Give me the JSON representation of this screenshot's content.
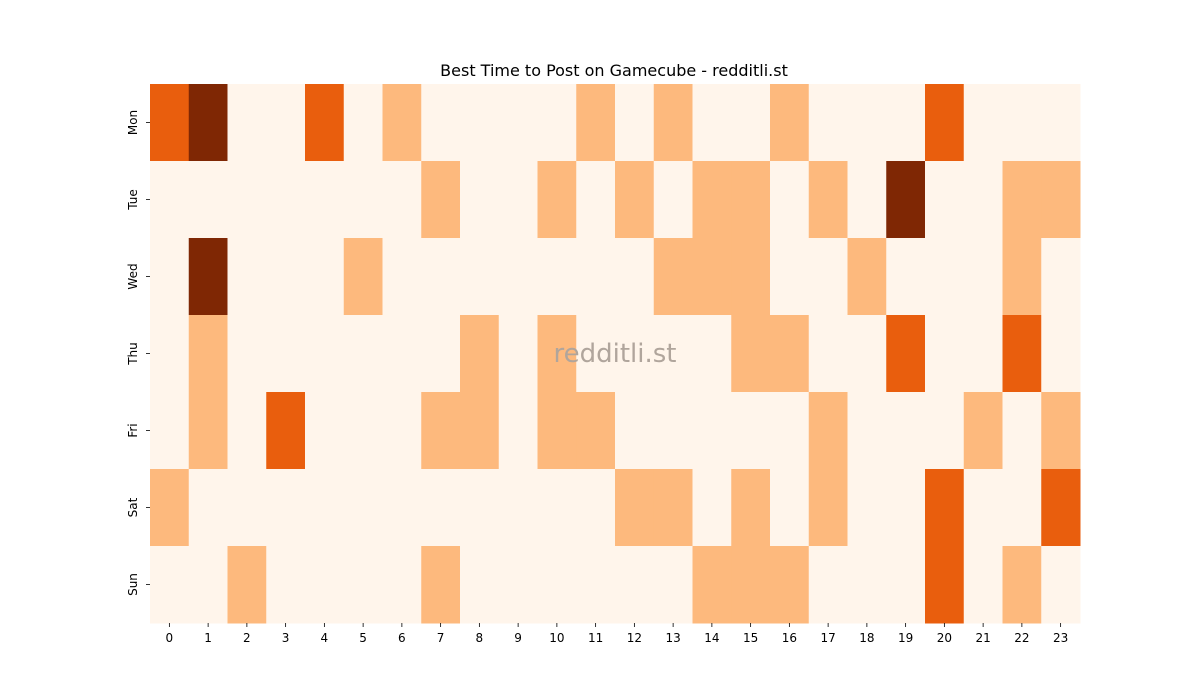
{
  "chart_data": {
    "type": "heatmap",
    "title": "Best Time to Post on Gamecube - redditli.st",
    "watermark": "redditli.st",
    "xlabel": "",
    "ylabel": "",
    "x_labels": [
      "0",
      "1",
      "2",
      "3",
      "4",
      "5",
      "6",
      "7",
      "8",
      "9",
      "10",
      "11",
      "12",
      "13",
      "14",
      "15",
      "16",
      "17",
      "18",
      "19",
      "20",
      "21",
      "22",
      "23"
    ],
    "y_labels": [
      "Mon",
      "Tue",
      "Wed",
      "Thu",
      "Fri",
      "Sat",
      "Sun"
    ],
    "values": [
      [
        2,
        3,
        0,
        0,
        2,
        0,
        1,
        0,
        0,
        0,
        0,
        1,
        0,
        1,
        0,
        0,
        1,
        0,
        0,
        0,
        2,
        0,
        0,
        0
      ],
      [
        0,
        0,
        0,
        0,
        0,
        0,
        0,
        1,
        0,
        0,
        1,
        0,
        1,
        0,
        1,
        1,
        0,
        1,
        0,
        3,
        0,
        0,
        1,
        1
      ],
      [
        0,
        3,
        0,
        0,
        0,
        1,
        0,
        0,
        0,
        0,
        0,
        0,
        0,
        1,
        1,
        1,
        0,
        0,
        1,
        0,
        0,
        0,
        1,
        0
      ],
      [
        0,
        1,
        0,
        0,
        0,
        0,
        0,
        0,
        1,
        0,
        1,
        0,
        0,
        0,
        0,
        1,
        1,
        0,
        0,
        2,
        0,
        0,
        2,
        0
      ],
      [
        0,
        1,
        0,
        2,
        0,
        0,
        0,
        1,
        1,
        0,
        1,
        1,
        0,
        0,
        0,
        0,
        0,
        1,
        0,
        0,
        0,
        1,
        0,
        1
      ],
      [
        1,
        0,
        0,
        0,
        0,
        0,
        0,
        0,
        0,
        0,
        0,
        0,
        1,
        1,
        0,
        1,
        0,
        1,
        0,
        0,
        2,
        0,
        0,
        2
      ],
      [
        0,
        0,
        1,
        0,
        0,
        0,
        0,
        1,
        0,
        0,
        0,
        0,
        0,
        0,
        1,
        1,
        1,
        0,
        0,
        0,
        2,
        0,
        1,
        0
      ]
    ],
    "colors": {
      "0": "#fff5eb",
      "1": "#fdb97d",
      "2": "#e95e0d",
      "3": "#7f2704"
    },
    "legend": "none",
    "grid": false
  }
}
